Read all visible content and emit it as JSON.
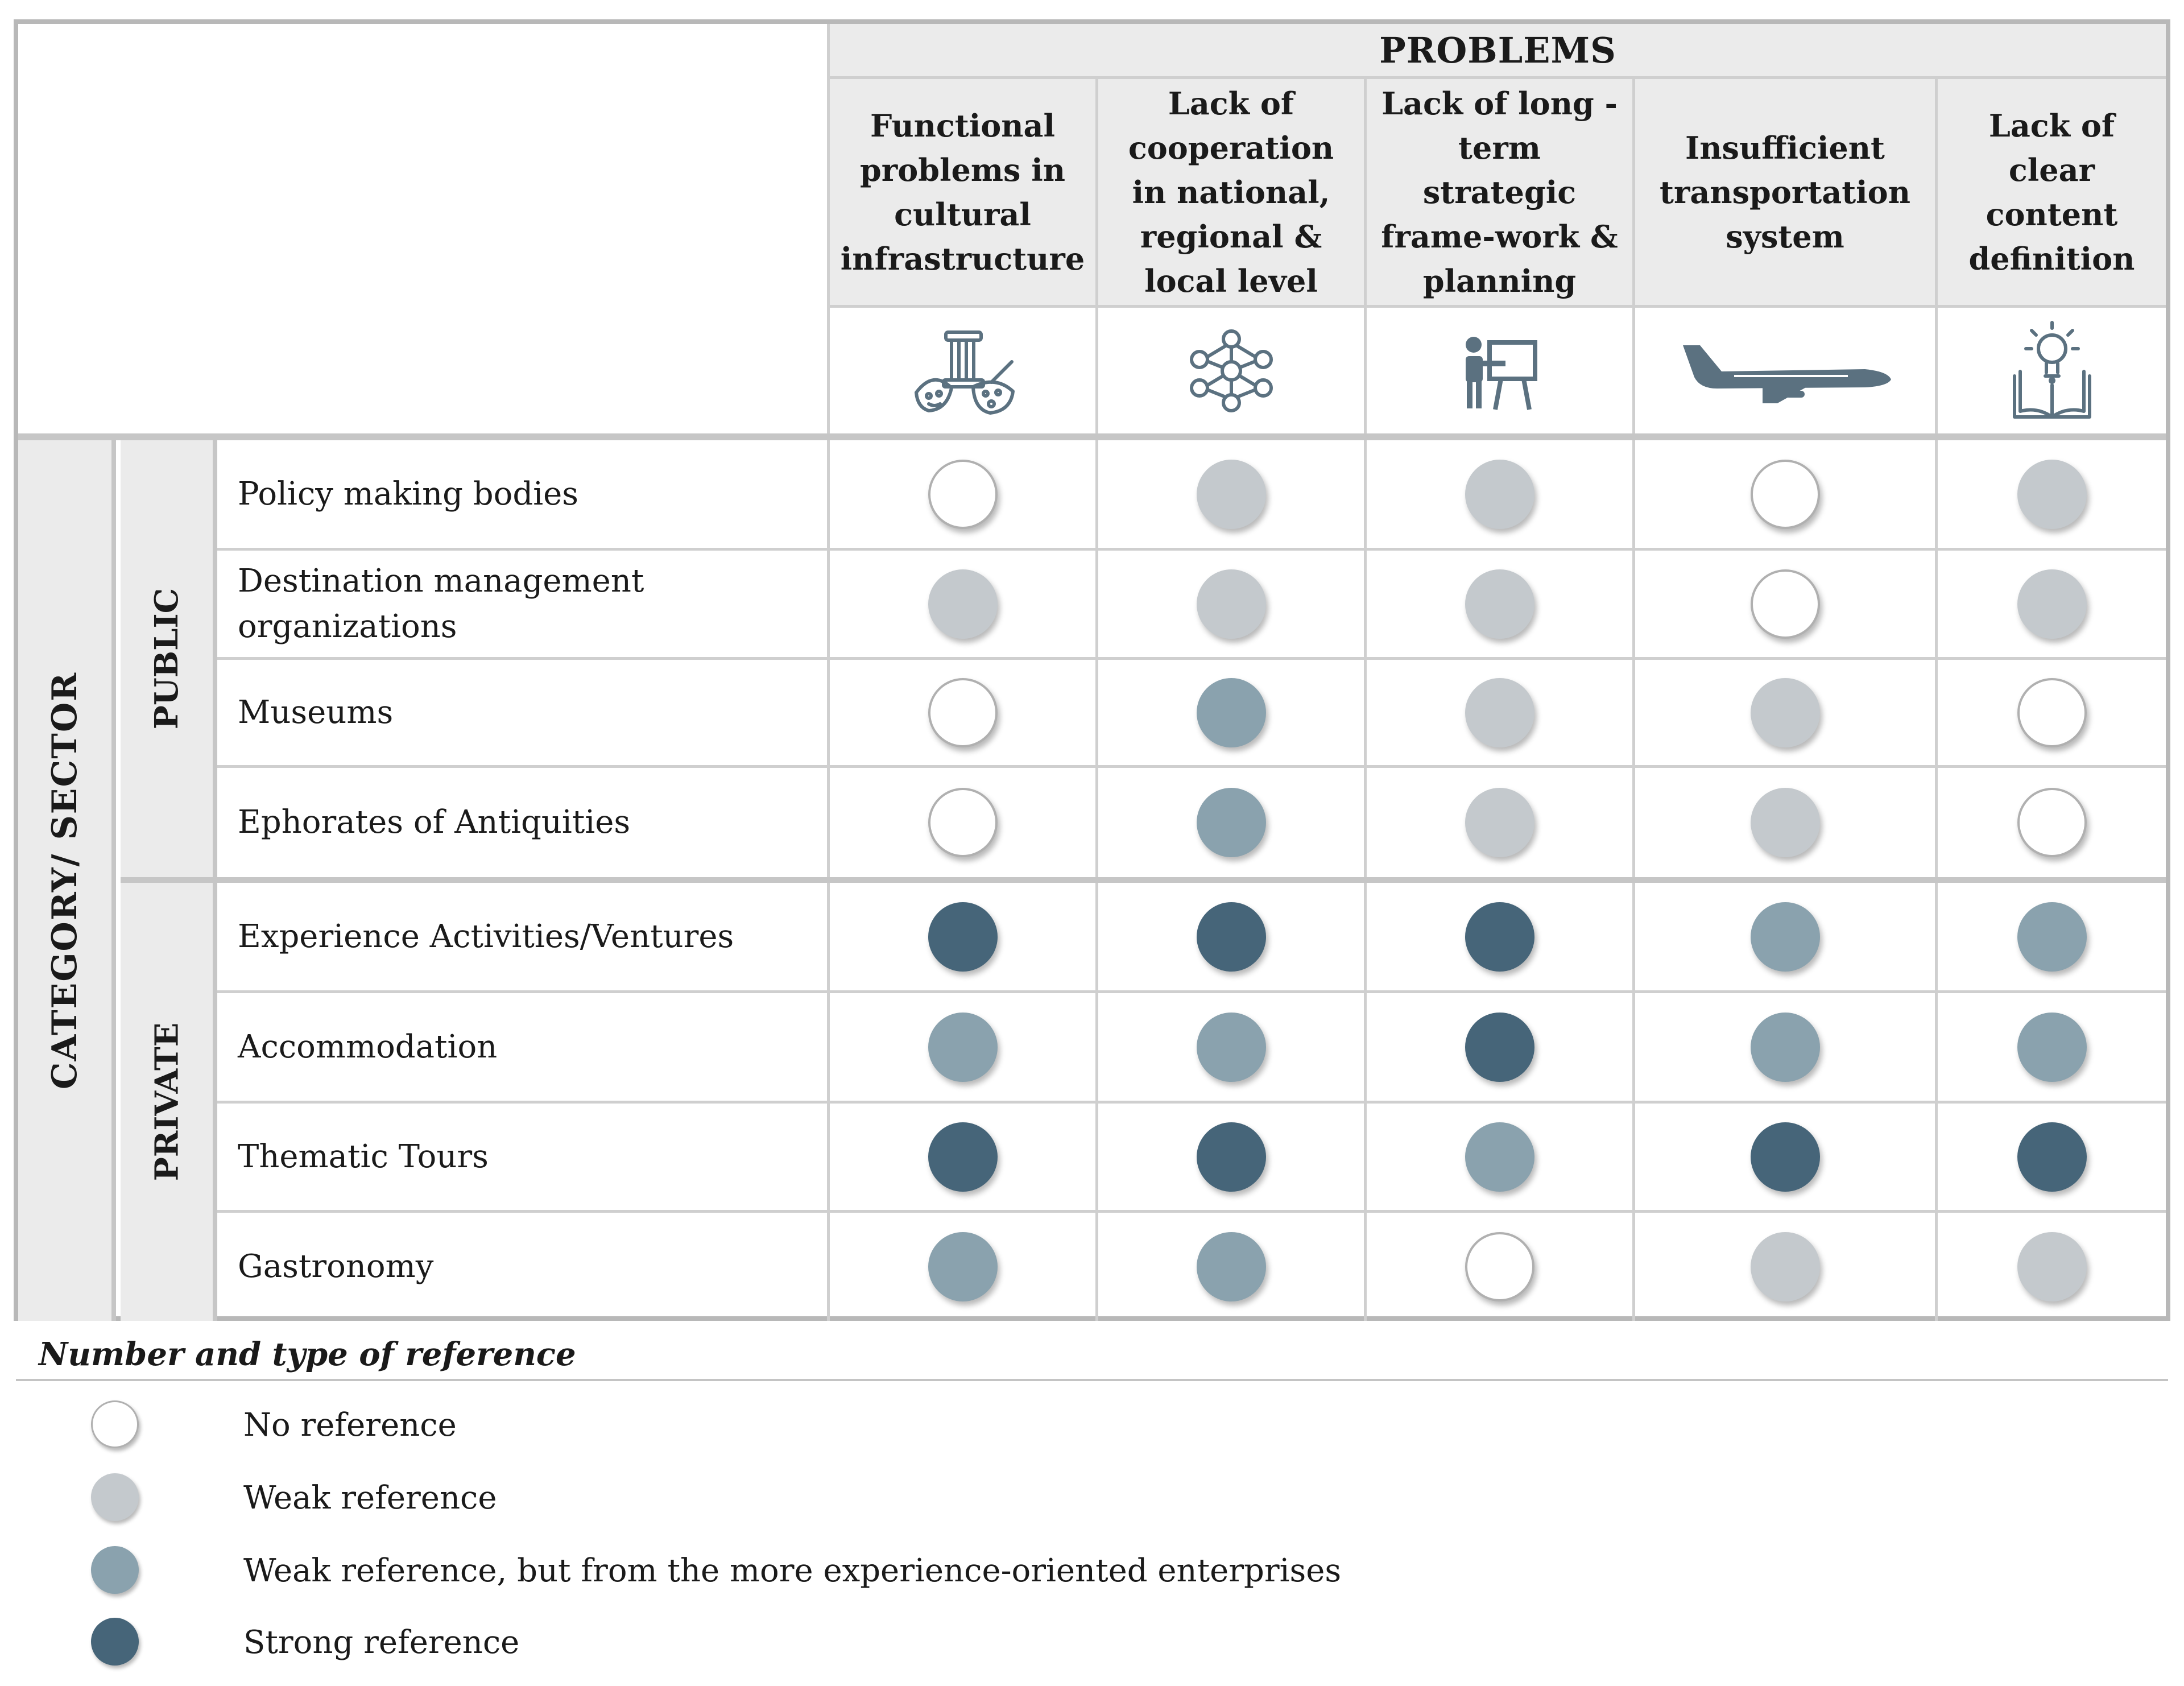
{
  "header": {
    "problems_title": "PROBLEMS"
  },
  "columns": [
    {
      "label": "Functional problems in cultural infrastructure",
      "icon": "cultural-heritage-icon"
    },
    {
      "label": "Lack of cooperation in national, regional & local level",
      "icon": "network-nodes-icon"
    },
    {
      "label": "Lack of long - term strategic frame-work & planning",
      "icon": "presentation-board-icon"
    },
    {
      "label": "Insufficient transportation system",
      "icon": "airplane-icon"
    },
    {
      "label": "Lack of clear content definition",
      "icon": "lightbulb-book-icon"
    }
  ],
  "side": {
    "category": "CATEGORY/ SECTOR",
    "public": "PUBLIC",
    "private": "PRIVATE"
  },
  "rows": [
    {
      "label": "Policy making bodies",
      "values": [
        "none",
        "weak",
        "weak",
        "none",
        "weak"
      ]
    },
    {
      "label": "Destination management organizations",
      "values": [
        "weak",
        "weak",
        "weak",
        "none",
        "weak"
      ]
    },
    {
      "label": "Museums",
      "values": [
        "none",
        "experience",
        "weak",
        "weak",
        "none"
      ]
    },
    {
      "label": " Ephorates of Antiquities",
      "values": [
        "none",
        "experience",
        "weak",
        "weak",
        "none"
      ]
    },
    {
      "label": "Experience Activities/Ventures",
      "values": [
        "strong",
        "strong",
        "strong",
        "experience",
        "experience"
      ]
    },
    {
      "label": "Accommodation",
      "values": [
        "experience",
        "experience",
        "strong",
        "experience",
        "experience"
      ]
    },
    {
      "label": "Thematic Tours",
      "values": [
        "strong",
        "strong",
        "experience",
        "strong",
        "strong"
      ]
    },
    {
      "label": "Gastronomy",
      "values": [
        "experience",
        "experience",
        "none",
        "weak",
        "weak"
      ]
    }
  ],
  "legend": {
    "title": "Number and type of reference",
    "items": [
      {
        "key": "none",
        "label": "No reference"
      },
      {
        "key": "weak",
        "label": "Weak reference"
      },
      {
        "key": "experience",
        "label": "Weak reference, but from the more experience-oriented enterprises"
      },
      {
        "key": "strong",
        "label": "Strong reference"
      }
    ]
  },
  "colors": {
    "none": "#ffffff",
    "weak": "#c4c9cd",
    "experience": "#8aa2ae",
    "strong": "#466579",
    "icon": "#5b7180",
    "dot_border": "#b0b0b0"
  }
}
